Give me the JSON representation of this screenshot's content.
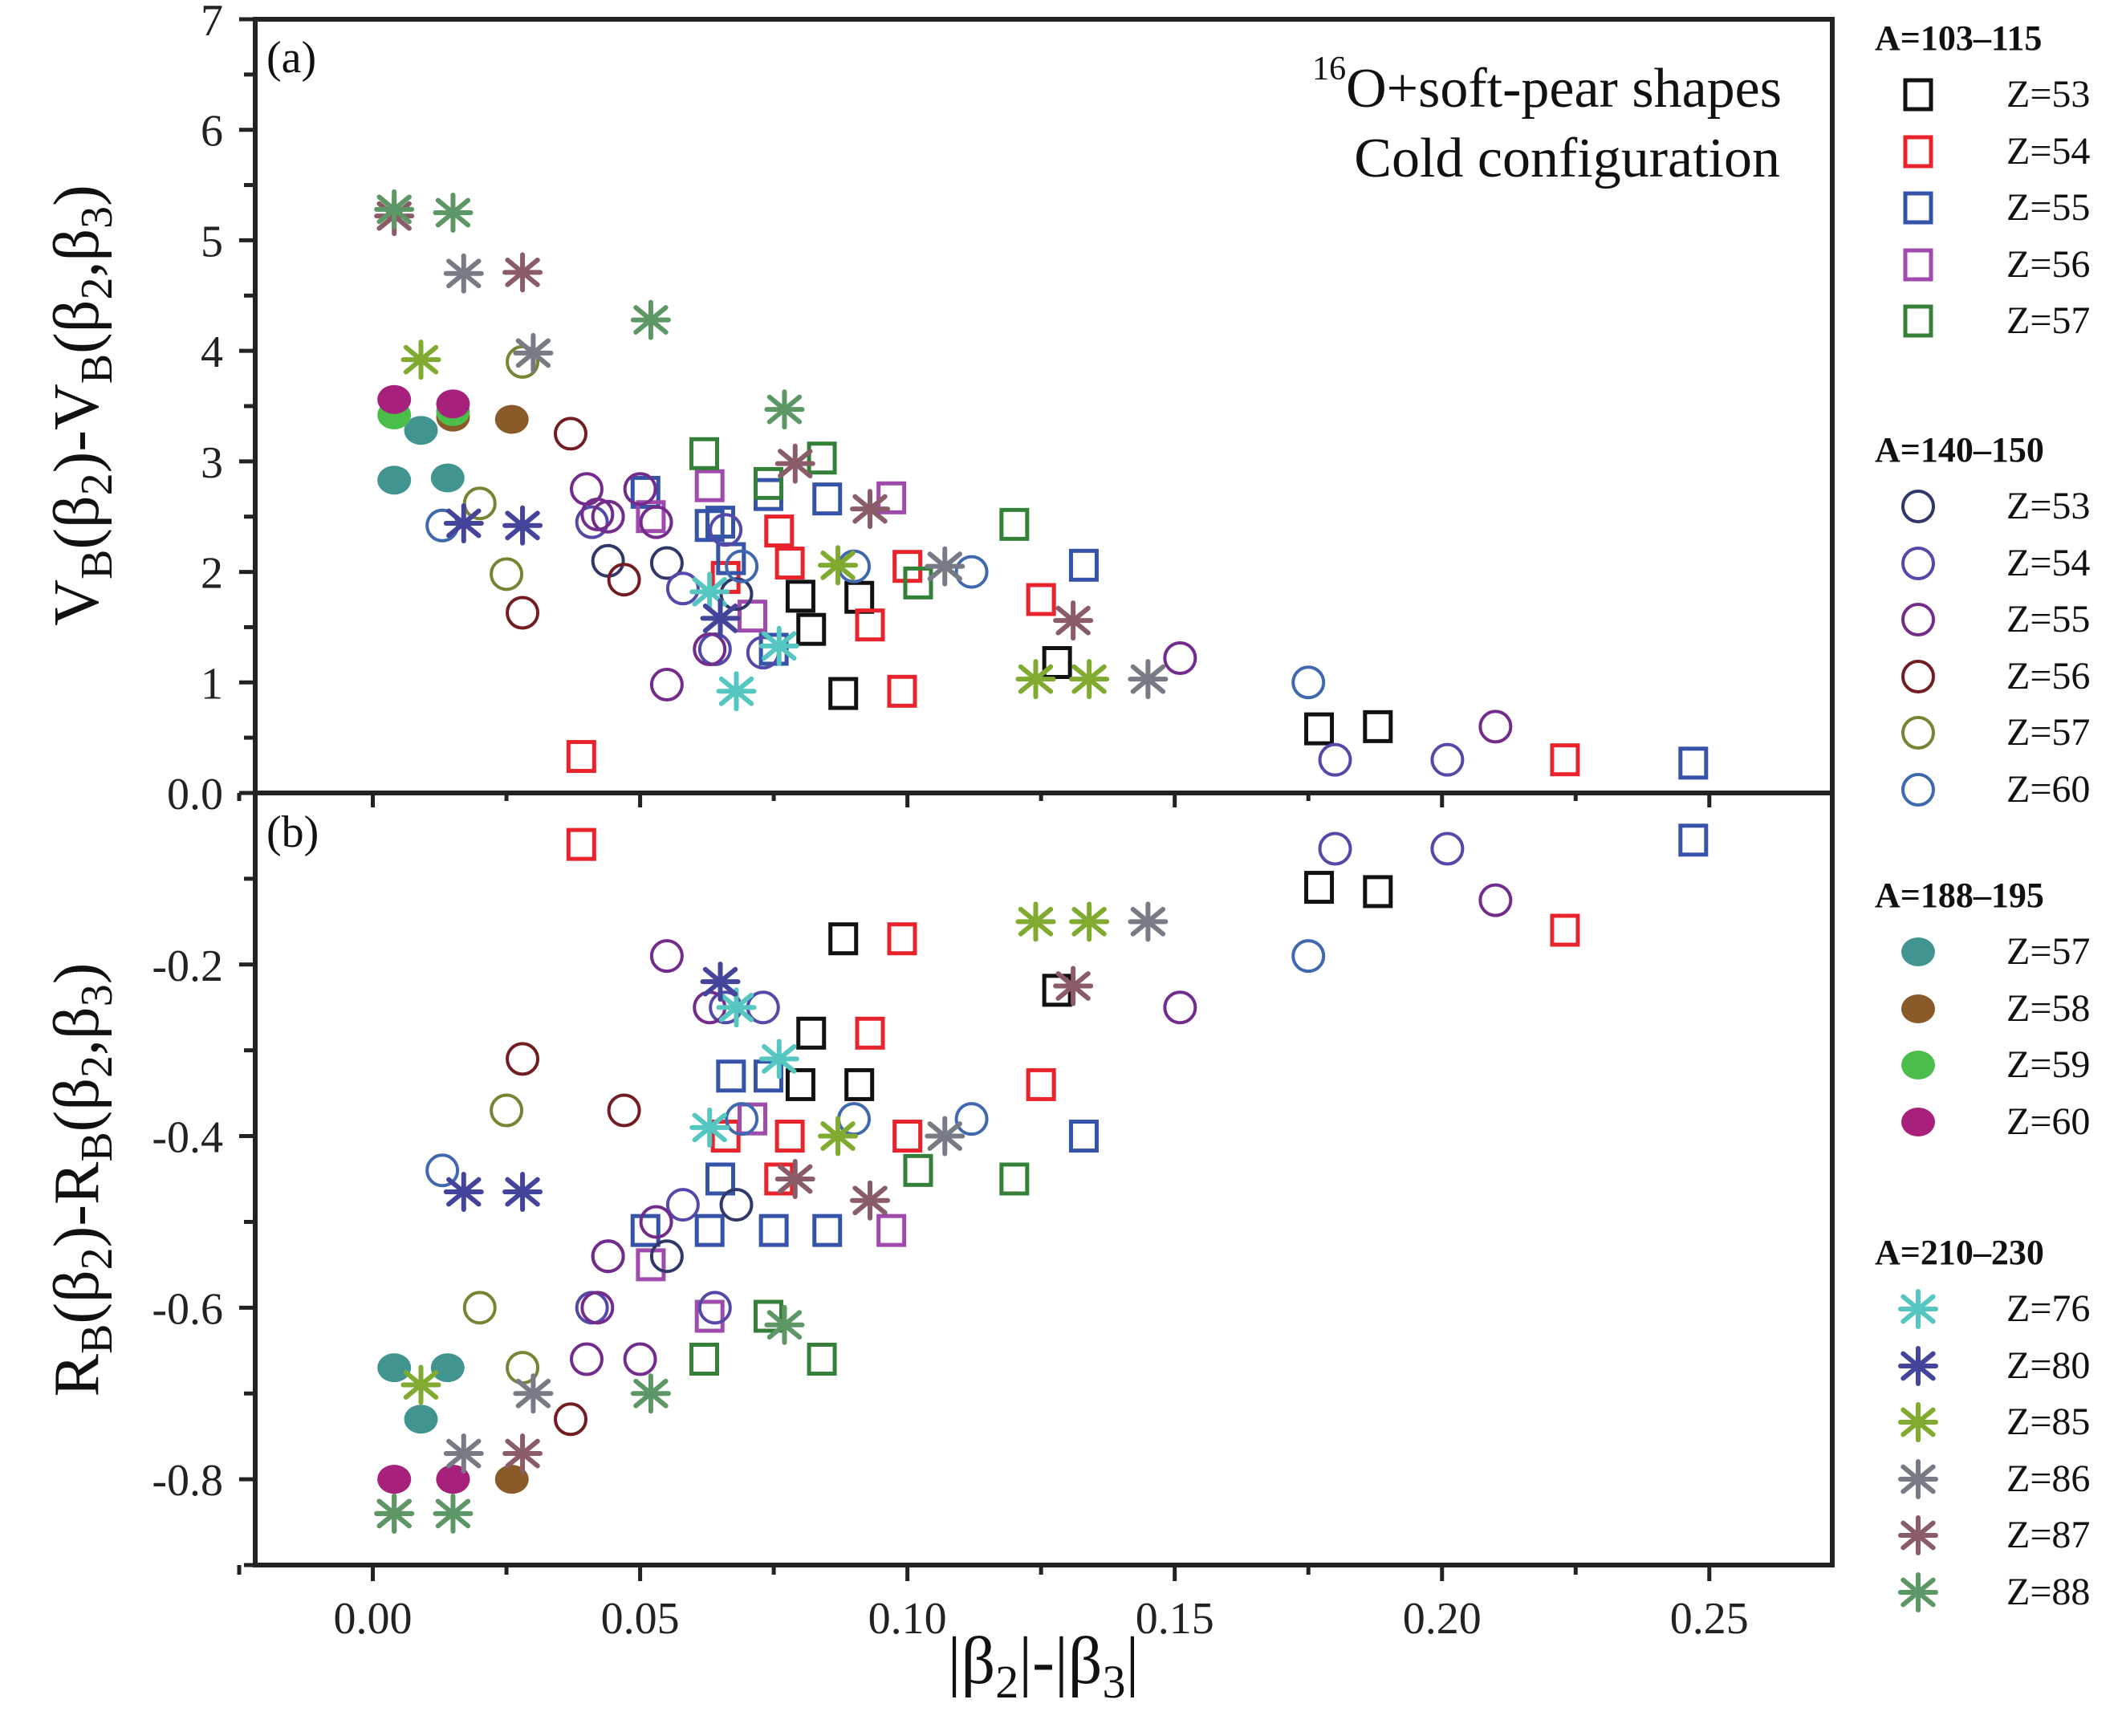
{
  "chart_data": [
    {
      "panel": "(a)",
      "type": "scatter",
      "title": "",
      "annotation": [
        "16O+soft-pear shapes",
        "Cold configuration"
      ],
      "annotation_superscript": "16",
      "xlabel": "|β2|-|β3|",
      "ylabel": "VB(β2)-VB(β2,β3)",
      "xlim": [
        -0.022,
        0.273
      ],
      "ylim": [
        0,
        7
      ],
      "yticks": [
        "0.0",
        "1",
        "2",
        "3",
        "4",
        "5",
        "6",
        "7"
      ],
      "yvalues": [
        0,
        1,
        2,
        3,
        4,
        5,
        6,
        7
      ],
      "grid": false
    },
    {
      "panel": "(b)",
      "type": "scatter",
      "xlabel": "|β2|-|β3|",
      "ylabel": "RB(β2)-RB(β2,β3)",
      "xlim": [
        -0.022,
        0.273
      ],
      "ylim": [
        -0.9,
        0.0
      ],
      "yticks": [
        "0.0",
        "-0.2",
        "-0.4",
        "-0.6",
        "-0.8"
      ],
      "yvalues": [
        0.0,
        -0.2,
        -0.4,
        -0.6,
        -0.8
      ],
      "xticks": [
        "0.00",
        "0.05",
        "0.10",
        "0.15",
        "0.20",
        "0.25"
      ],
      "xvalues": [
        0.0,
        0.05,
        0.1,
        0.15,
        0.2,
        0.25
      ],
      "grid": false
    }
  ],
  "labels": {
    "panel_a": "(a)",
    "panel_b": "(b)",
    "annot_line1_sup": "16",
    "annot_line1": "O+soft-pear shapes",
    "annot_line2": "Cold configuration",
    "ylabel_a": {
      "main": "V",
      "sub1": "B",
      "mid1": "(β",
      "sub2": "2",
      "mid2": ")-V",
      "sub3": "B",
      "mid3": "(β",
      "sub4": "2",
      "mid4": ",β",
      "sub5": "3",
      "end": ")"
    },
    "ylabel_b": {
      "main": "R",
      "sub1": "B",
      "mid1": "(β",
      "sub2": "2",
      "mid2": ")-R",
      "sub3": "B",
      "mid3": "(β",
      "sub4": "2",
      "mid4": ",β",
      "sub5": "3",
      "end": ")"
    },
    "xlabel": {
      "p1": "|β",
      "s1": "2",
      "p2": "|-|β",
      "s2": "3",
      "p3": "|"
    }
  },
  "legend": [
    {
      "title": "A=103–115",
      "marker": "square",
      "items": [
        {
          "label": "Z=53",
          "color": "#111111"
        },
        {
          "label": "Z=54",
          "color": "#e8232b"
        },
        {
          "label": "Z=55",
          "color": "#3553a8"
        },
        {
          "label": "Z=56",
          "color": "#a04aae"
        },
        {
          "label": "Z=57",
          "color": "#348039"
        }
      ]
    },
    {
      "title": "A=140–150",
      "marker": "circle",
      "items": [
        {
          "label": "Z=53",
          "color": "#2f3868"
        },
        {
          "label": "Z=54",
          "color": "#5449a8"
        },
        {
          "label": "Z=55",
          "color": "#742c8c"
        },
        {
          "label": "Z=56",
          "color": "#721d21"
        },
        {
          "label": "Z=57",
          "color": "#788334"
        },
        {
          "label": "Z=60",
          "color": "#3f68ae"
        }
      ]
    },
    {
      "title": "A=188–195",
      "marker": "filled-circle",
      "items": [
        {
          "label": "Z=57",
          "color": "#429490"
        },
        {
          "label": "Z=58",
          "color": "#8a5a28"
        },
        {
          "label": "Z=59",
          "color": "#4bbd4b"
        },
        {
          "label": "Z=60",
          "color": "#a6207c"
        }
      ]
    },
    {
      "title": "A=210–230",
      "marker": "asterisk",
      "items": [
        {
          "label": "Z=76",
          "color": "#55c6c0"
        },
        {
          "label": "Z=80",
          "color": "#43449a"
        },
        {
          "label": "Z=85",
          "color": "#80aa30"
        },
        {
          "label": "Z=86",
          "color": "#777b85"
        },
        {
          "label": "Z=87",
          "color": "#8a5c68"
        },
        {
          "label": "Z=88",
          "color": "#5e9766"
        }
      ]
    }
  ],
  "series": [
    {
      "name": "A=103–115 Z=53",
      "marker": "square",
      "color": "#111111",
      "x": [
        0.08,
        0.082,
        0.088,
        0.091,
        0.128,
        0.177,
        0.188
      ],
      "V": [
        1.78,
        1.48,
        0.9,
        1.77,
        1.18,
        0.58,
        0.6
      ],
      "R": [
        -0.34,
        -0.28,
        -0.17,
        -0.34,
        -0.23,
        -0.11,
        -0.115
      ]
    },
    {
      "name": "A=103–115 Z=54",
      "marker": "square",
      "color": "#e8232b",
      "x": [
        0.039,
        0.066,
        0.076,
        0.078,
        0.093,
        0.099,
        0.1,
        0.125,
        0.223
      ],
      "V": [
        0.33,
        1.95,
        2.37,
        2.08,
        1.52,
        0.92,
        2.05,
        1.75,
        0.3
      ],
      "R": [
        -0.06,
        -0.4,
        -0.45,
        -0.4,
        -0.28,
        -0.17,
        -0.4,
        -0.34,
        -0.16
      ]
    },
    {
      "name": "A=103–115 Z=55",
      "marker": "square",
      "color": "#3553a8",
      "x": [
        0.051,
        0.063,
        0.065,
        0.067,
        0.074,
        0.075,
        0.085,
        0.133,
        0.247
      ],
      "V": [
        2.72,
        2.42,
        2.45,
        2.12,
        2.7,
        1.3,
        2.66,
        2.06,
        0.27
      ],
      "R": [
        -0.51,
        -0.51,
        -0.45,
        -0.33,
        -0.33,
        -0.51,
        -0.51,
        -0.4,
        -0.055
      ]
    },
    {
      "name": "A=103–115 Z=56",
      "marker": "square",
      "color": "#a04aae",
      "x": [
        0.052,
        0.063,
        0.071,
        0.097
      ],
      "V": [
        2.5,
        2.78,
        1.6,
        2.67
      ],
      "R": [
        -0.55,
        -0.61,
        -0.38,
        -0.51
      ]
    },
    {
      "name": "A=103–115 Z=57",
      "marker": "square",
      "color": "#348039",
      "x": [
        0.062,
        0.074,
        0.084,
        0.102,
        0.12
      ],
      "V": [
        3.07,
        2.8,
        3.03,
        1.9,
        2.43
      ],
      "R": [
        -0.66,
        -0.61,
        -0.66,
        -0.44,
        -0.45
      ]
    },
    {
      "name": "A=140–150 Z=53",
      "marker": "circle",
      "color": "#2f3868",
      "x": [
        0.044,
        0.055,
        0.068
      ],
      "V": [
        2.1,
        2.08,
        1.8
      ],
      "R": [
        -0.54,
        -0.54,
        -0.48
      ]
    },
    {
      "name": "A=140–150 Z=54",
      "marker": "circle",
      "color": "#5449a8",
      "x": [
        0.041,
        0.058,
        0.066,
        0.073,
        0.064,
        0.18,
        0.201
      ],
      "V": [
        2.45,
        1.85,
        2.38,
        1.27,
        1.3,
        0.3,
        0.3
      ],
      "R": [
        -0.6,
        -0.48,
        -0.25,
        -0.25,
        -0.6,
        -0.065,
        -0.065
      ]
    },
    {
      "name": "A=140–150 Z=55",
      "marker": "circle",
      "color": "#742c8c",
      "x": [
        0.04,
        0.042,
        0.044,
        0.05,
        0.053,
        0.055,
        0.063,
        0.151,
        0.21
      ],
      "V": [
        2.75,
        2.52,
        2.5,
        2.75,
        2.45,
        0.98,
        1.3,
        1.22,
        0.6
      ],
      "R": [
        -0.66,
        -0.6,
        -0.54,
        -0.66,
        -0.5,
        -0.19,
        -0.25,
        -0.25,
        -0.125
      ]
    },
    {
      "name": "A=140–150 Z=56",
      "marker": "circle",
      "color": "#721d21",
      "x": [
        0.028,
        0.037,
        0.047
      ],
      "V": [
        1.63,
        3.25,
        1.93
      ],
      "R": [
        -0.31,
        -0.73,
        -0.37
      ]
    },
    {
      "name": "A=140–150 Z=57",
      "marker": "circle",
      "color": "#788334",
      "x": [
        0.02,
        0.025,
        0.028
      ],
      "V": [
        2.62,
        1.98,
        3.9
      ],
      "R": [
        -0.6,
        -0.37,
        -0.67
      ]
    },
    {
      "name": "A=140–150 Z=60",
      "marker": "circle",
      "color": "#3f68ae",
      "x": [
        0.013,
        0.069,
        0.09,
        0.112,
        0.175
      ],
      "V": [
        2.42,
        2.05,
        2.05,
        2.0,
        1.0
      ],
      "R": [
        -0.44,
        -0.38,
        -0.38,
        -0.38,
        -0.19
      ]
    },
    {
      "name": "A=188–195 Z=57",
      "marker": "filled-circle",
      "color": "#429490",
      "x": [
        0.004,
        0.009,
        0.014
      ],
      "V": [
        2.83,
        3.28,
        2.85
      ],
      "R": [
        -0.67,
        -0.73,
        -0.67
      ]
    },
    {
      "name": "A=188–195 Z=58",
      "marker": "filled-circle",
      "color": "#8a5a28",
      "x": [
        0.015,
        0.026
      ],
      "V": [
        3.4,
        3.38
      ],
      "R": [
        -0.8,
        -0.8
      ]
    },
    {
      "name": "A=188–195 Z=59",
      "marker": "filled-circle",
      "color": "#4bbd4b",
      "x": [
        0.004,
        0.015
      ],
      "V": [
        3.42,
        3.45
      ],
      "R": [
        -0.8,
        -0.8
      ]
    },
    {
      "name": "A=188–195 Z=60",
      "marker": "filled-circle",
      "color": "#a6207c",
      "x": [
        0.004,
        0.015
      ],
      "V": [
        3.56,
        3.52
      ],
      "R": [
        -0.8,
        -0.8
      ]
    },
    {
      "name": "A=210–230 Z=76",
      "marker": "asterisk",
      "color": "#55c6c0",
      "x": [
        0.063,
        0.068,
        0.076
      ],
      "V": [
        1.82,
        0.92,
        1.33
      ],
      "R": [
        -0.39,
        -0.25,
        -0.31
      ]
    },
    {
      "name": "A=210–230 Z=80",
      "marker": "asterisk",
      "color": "#43449a",
      "x": [
        0.017,
        0.028,
        0.065
      ],
      "V": [
        2.44,
        2.42,
        1.58
      ],
      "R": [
        -0.465,
        -0.465,
        -0.22
      ]
    },
    {
      "name": "A=210–230 Z=85",
      "marker": "asterisk",
      "color": "#80aa30",
      "x": [
        0.009,
        0.087,
        0.124,
        0.134
      ],
      "V": [
        3.92,
        2.06,
        1.03,
        1.03
      ],
      "R": [
        -0.69,
        -0.4,
        -0.15,
        -0.15
      ]
    },
    {
      "name": "A=210–230 Z=86",
      "marker": "asterisk",
      "color": "#777b85",
      "x": [
        0.017,
        0.03,
        0.107,
        0.145
      ],
      "V": [
        4.7,
        3.98,
        2.05,
        1.03
      ],
      "R": [
        -0.77,
        -0.7,
        -0.4,
        -0.15
      ]
    },
    {
      "name": "A=210–230 Z=87",
      "marker": "asterisk",
      "color": "#8a5c68",
      "x": [
        0.004,
        0.028,
        0.079,
        0.093,
        0.131
      ],
      "V": [
        5.22,
        4.71,
        2.98,
        2.57,
        1.56
      ],
      "R": [
        -0.84,
        -0.77,
        -0.45,
        -0.475,
        -0.225
      ]
    },
    {
      "name": "A=210–230 Z=88",
      "marker": "asterisk",
      "color": "#5e9766",
      "x": [
        0.004,
        0.015,
        0.052,
        0.077
      ],
      "V": [
        5.28,
        5.25,
        4.28,
        3.47
      ],
      "R": [
        -0.84,
        -0.84,
        -0.7,
        -0.62
      ]
    }
  ]
}
